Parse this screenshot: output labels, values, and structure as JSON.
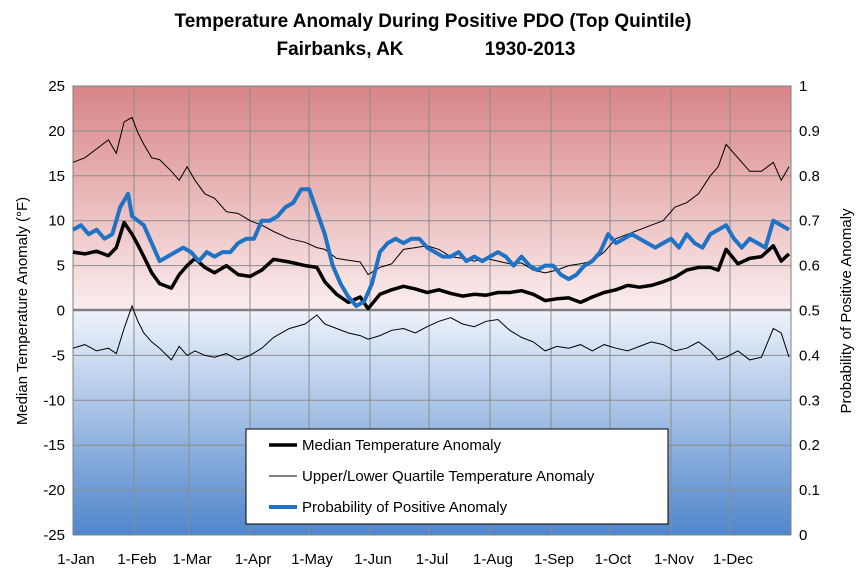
{
  "chart_data": {
    "type": "line",
    "title": "Temperature Anomaly During Positive PDO (Top Quintile)",
    "subtitle_location": "Fairbanks, AK",
    "subtitle_years": "1930-2013",
    "ylabel": "Median Temperature Anomaly (°F)",
    "y2label": "Probability of Positive Anomaly",
    "ylim": [
      -25,
      25
    ],
    "y2lim": [
      0,
      1
    ],
    "xlim": [
      0,
      365
    ],
    "y_ticks": [
      "25",
      "20",
      "15",
      "10",
      "5",
      "0",
      "-5",
      "-10",
      "-15",
      "-20",
      "-25"
    ],
    "y2_ticks": [
      "1",
      "0.9",
      "0.8",
      "0.7",
      "0.6",
      "0.5",
      "0.4",
      "0.3",
      "0.2",
      "0.1",
      "0"
    ],
    "x_ticks": [
      {
        "label": "1-Jan",
        "day": 0
      },
      {
        "label": "1-Feb",
        "day": 31
      },
      {
        "label": "1-Mar",
        "day": 59
      },
      {
        "label": "1-Apr",
        "day": 90
      },
      {
        "label": "1-May",
        "day": 120
      },
      {
        "label": "1-Jun",
        "day": 151
      },
      {
        "label": "1-Jul",
        "day": 181
      },
      {
        "label": "1-Aug",
        "day": 212
      },
      {
        "label": "1-Sep",
        "day": 243
      },
      {
        "label": "1-Oct",
        "day": 273
      },
      {
        "label": "1-Nov",
        "day": 304
      },
      {
        "label": "1-Dec",
        "day": 334
      }
    ],
    "grid": true,
    "legend_position": "bottom-center",
    "colors": {
      "median": "#000000",
      "quartile": "#000000",
      "probability": "#1f72c4",
      "warm": "#d98c8e",
      "cold": "#5a8fd0"
    },
    "series": [
      {
        "name": "Median Temperature Anomaly",
        "x": [
          0,
          6,
          12,
          18,
          22,
          26,
          30,
          33,
          36,
          40,
          44,
          50,
          54,
          58,
          62,
          67,
          72,
          78,
          84,
          90,
          96,
          102,
          110,
          118,
          124,
          128,
          134,
          140,
          146,
          150,
          156,
          162,
          168,
          174,
          180,
          186,
          192,
          198,
          204,
          210,
          216,
          222,
          228,
          234,
          240,
          246,
          252,
          258,
          264,
          270,
          276,
          282,
          288,
          294,
          300,
          306,
          312,
          318,
          324,
          328,
          332,
          338,
          344,
          350,
          356,
          360,
          364
        ],
        "y": [
          6.5,
          6.3,
          6.6,
          6.1,
          7,
          9.8,
          8.5,
          7.3,
          6,
          4.2,
          3,
          2.5,
          4,
          5,
          5.8,
          4.8,
          4.2,
          5,
          4,
          3.8,
          4.5,
          5.7,
          5.4,
          5,
          4.8,
          3.2,
          1.8,
          0.9,
          1.5,
          0.2,
          1.8,
          2.3,
          2.7,
          2.4,
          2,
          2.3,
          1.9,
          1.6,
          1.8,
          1.7,
          2,
          2,
          2.2,
          1.8,
          1.1,
          1.3,
          1.4,
          0.9,
          1.5,
          2,
          2.3,
          2.8,
          2.6,
          2.8,
          3.2,
          3.7,
          4.5,
          4.8,
          4.8,
          4.5,
          6.8,
          5.2,
          5.8,
          6,
          7.2,
          5.5,
          6.3
        ]
      },
      {
        "name": "Upper/Lower Quartile Temperature Anomaly",
        "segments": [
          {
            "x": [
              0,
              6,
              12,
              18,
              22,
              26,
              30,
              33,
              36,
              40,
              44,
              50,
              54,
              58,
              62,
              67,
              72,
              78,
              84,
              90,
              96,
              102,
              110,
              118,
              124,
              128,
              134,
              140,
              146,
              150,
              156,
              162,
              168,
              174,
              180,
              186,
              192,
              198,
              204,
              210,
              216,
              222,
              228,
              234,
              240,
              246,
              252,
              258,
              264,
              270,
              276,
              282,
              288,
              294,
              300,
              306,
              312,
              318,
              324,
              328,
              332,
              338,
              344,
              350,
              356,
              360,
              364
            ],
            "y": [
              16.5,
              17,
              18,
              19,
              17.5,
              21,
              21.5,
              19.8,
              18.5,
              17,
              16.8,
              15.5,
              14.5,
              16,
              14.5,
              13,
              12.5,
              11,
              10.8,
              10,
              9.5,
              8.8,
              8,
              7.6,
              7,
              6.8,
              5.8,
              5.6,
              5.4,
              4,
              4.8,
              5.2,
              6.8,
              7,
              7.2,
              6.8,
              6,
              5.8,
              5.5,
              5.8,
              5.5,
              5.2,
              5.3,
              4.5,
              4.2,
              4.5,
              5,
              5.2,
              5.5,
              6.5,
              8,
              8.5,
              9,
              9.5,
              10,
              11.5,
              12,
              13,
              15,
              16,
              18.5,
              17,
              15.5,
              15.5,
              16.5,
              14.5,
              16
            ]
          },
          {
            "x": [
              0,
              6,
              12,
              18,
              22,
              26,
              30,
              33,
              36,
              40,
              44,
              50,
              54,
              58,
              62,
              67,
              72,
              78,
              84,
              90,
              96,
              102,
              110,
              118,
              124,
              128,
              134,
              140,
              146,
              150,
              156,
              162,
              168,
              174,
              180,
              186,
              192,
              198,
              204,
              210,
              216,
              222,
              228,
              234,
              240,
              246,
              252,
              258,
              264,
              270,
              276,
              282,
              288,
              294,
              300,
              306,
              312,
              318,
              324,
              328,
              332,
              338,
              344,
              350,
              356,
              360,
              364
            ],
            "y": [
              -4.2,
              -3.8,
              -4.5,
              -4.2,
              -4.8,
              -2,
              0.5,
              -1.2,
              -2.5,
              -3.5,
              -4.2,
              -5.5,
              -4,
              -5,
              -4.5,
              -5,
              -5.2,
              -4.8,
              -5.5,
              -5,
              -4.2,
              -3,
              -2,
              -1.5,
              -0.5,
              -1.5,
              -2,
              -2.5,
              -2.8,
              -3.2,
              -2.8,
              -2.2,
              -2,
              -2.5,
              -1.8,
              -1.2,
              -0.8,
              -1.5,
              -1.8,
              -1.2,
              -1,
              -2.2,
              -3,
              -3.5,
              -4.5,
              -4,
              -4.2,
              -3.8,
              -4.5,
              -3.8,
              -4.2,
              -4.5,
              -4,
              -3.5,
              -3.8,
              -4.5,
              -4.2,
              -3.5,
              -4.5,
              -5.5,
              -5.2,
              -4.5,
              -5.5,
              -5.2,
              -2,
              -2.5,
              -5.2
            ]
          }
        ]
      },
      {
        "name": "Probability of Positive Anomaly",
        "axis": "right",
        "x": [
          0,
          4,
          8,
          12,
          16,
          20,
          24,
          28,
          30,
          33,
          36,
          40,
          44,
          48,
          52,
          56,
          60,
          64,
          68,
          72,
          76,
          80,
          84,
          88,
          92,
          96,
          100,
          104,
          108,
          112,
          116,
          120,
          124,
          128,
          132,
          136,
          140,
          144,
          148,
          152,
          156,
          160,
          164,
          168,
          172,
          176,
          180,
          184,
          188,
          192,
          196,
          200,
          204,
          208,
          212,
          216,
          220,
          224,
          228,
          232,
          236,
          240,
          244,
          248,
          252,
          256,
          260,
          264,
          268,
          272,
          276,
          280,
          284,
          288,
          292,
          296,
          300,
          304,
          308,
          312,
          316,
          320,
          324,
          328,
          332,
          336,
          340,
          344,
          348,
          352,
          356,
          360,
          364
        ],
        "y": [
          0.68,
          0.69,
          0.67,
          0.68,
          0.66,
          0.67,
          0.73,
          0.76,
          0.71,
          0.7,
          0.69,
          0.65,
          0.61,
          0.62,
          0.63,
          0.64,
          0.63,
          0.61,
          0.63,
          0.62,
          0.63,
          0.63,
          0.65,
          0.66,
          0.66,
          0.7,
          0.7,
          0.71,
          0.73,
          0.74,
          0.77,
          0.77,
          0.72,
          0.67,
          0.6,
          0.56,
          0.53,
          0.51,
          0.52,
          0.56,
          0.63,
          0.65,
          0.66,
          0.65,
          0.66,
          0.66,
          0.64,
          0.63,
          0.62,
          0.62,
          0.63,
          0.61,
          0.62,
          0.61,
          0.62,
          0.63,
          0.62,
          0.6,
          0.62,
          0.6,
          0.59,
          0.6,
          0.6,
          0.58,
          0.57,
          0.58,
          0.6,
          0.61,
          0.63,
          0.67,
          0.65,
          0.66,
          0.67,
          0.66,
          0.65,
          0.64,
          0.65,
          0.66,
          0.64,
          0.67,
          0.65,
          0.64,
          0.67,
          0.68,
          0.69,
          0.66,
          0.64,
          0.66,
          0.65,
          0.64,
          0.7,
          0.69,
          0.68
        ]
      }
    ]
  }
}
